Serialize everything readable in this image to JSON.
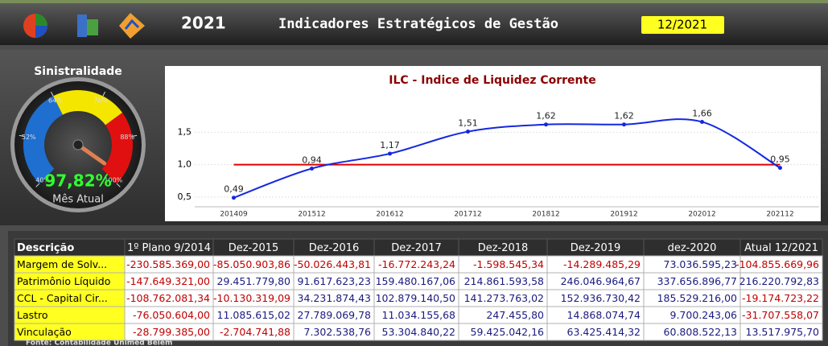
{
  "header": {
    "year": "2021",
    "title": "Indicadores Estratégicos de Gestão",
    "period": "12/2021"
  },
  "gauge": {
    "title": "Sinistralidade",
    "value": 97.82,
    "value_label": "97,82%",
    "caption": "Mês Atual",
    "ticks": [
      {
        "value": 40,
        "label": "40%"
      },
      {
        "value": 52,
        "label": "52%"
      },
      {
        "value": 64,
        "label": "64%"
      },
      {
        "value": 76,
        "label": "76%"
      },
      {
        "value": 88,
        "label": "88%"
      },
      {
        "value": 100,
        "label": "100%"
      }
    ],
    "bands": [
      {
        "from": 40,
        "to": 64,
        "color": "#1e6fd0"
      },
      {
        "from": 64,
        "to": 82,
        "color": "#f5e600"
      },
      {
        "from": 82,
        "to": 100,
        "color": "#e01010"
      }
    ]
  },
  "chart_data": {
    "type": "line",
    "title": "ILC - Indice de Liquidez Corrente",
    "categories": [
      "201409",
      "201512",
      "201612",
      "201712",
      "201812",
      "201912",
      "202012",
      "202112"
    ],
    "series": [
      {
        "color": "#1428e0",
        "values": [
          0.49,
          0.94,
          1.17,
          1.51,
          1.62,
          1.62,
          1.66,
          0.95
        ],
        "value_labels": [
          "0,49",
          "0,94",
          "1,17",
          "1,51",
          "1,62",
          "1,62",
          "1,66",
          "0,95"
        ]
      }
    ],
    "reference_line": {
      "value": 1,
      "color": "#e00000"
    },
    "ylim": [
      0.35,
      2.15
    ],
    "yticks": [
      {
        "value": 0.5,
        "label": "0,5"
      },
      {
        "value": 1,
        "label": "1,0"
      },
      {
        "value": 1.5,
        "label": "1,5"
      }
    ],
    "grid": true
  },
  "table": {
    "header": [
      "Descrição",
      "1º Plano 9/2014",
      "Dez-2015",
      "Dez-2016",
      "Dez-2017",
      "Dez-2018",
      "Dez-2019",
      "dez-2020",
      "Atual 12/2021"
    ],
    "rows": [
      [
        "Margem de Solv...",
        "-230.585.369,00",
        "-85.050.903,86",
        "-50.026.443,81",
        "-16.772.243,24",
        "-1.598.545,34",
        "-14.289.485,29",
        "73.036.595,23",
        "-104.855.669,96"
      ],
      [
        "Patrimônio Líquido",
        "-147.649.321,00",
        "29.451.779,80",
        "91.617.623,23",
        "159.480.167,06",
        "214.861.593,58",
        "246.046.964,67",
        "337.656.896,77",
        "216.220.792,83"
      ],
      [
        "CCL - Capital Cir...",
        "-108.762.081,34",
        "-10.130.319,09",
        "34.231.874,43",
        "102.879.140,50",
        "141.273.763,02",
        "152.936.730,42",
        "185.529.216,00",
        "-19.174.723,22"
      ],
      [
        "Lastro",
        "-76.050.604,00",
        "11.085.615,02",
        "27.789.069,78",
        "11.034.155,68",
        "247.455,80",
        "14.868.074,74",
        "9.700.243,06",
        "-31.707.558,07"
      ],
      [
        "Vinculação",
        "-28.799.385,00",
        "-2.704.741,88",
        "7.302.538,76",
        "53.304.840,22",
        "59.425.042,16",
        "63.425.414,32",
        "60.808.522,13",
        "13.517.975,70"
      ]
    ]
  },
  "footer": "Fonte: Contabilidade Unimed Belém"
}
